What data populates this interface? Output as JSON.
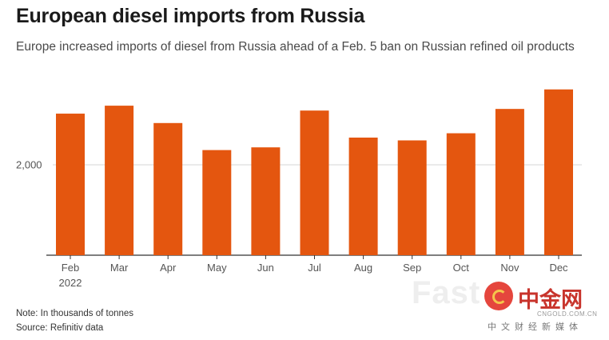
{
  "header": {
    "title": "European diesel imports from Russia",
    "subtitle": "Europe increased imports of diesel from Russia ahead of a Feb. 5 ban on Russian refined oil products"
  },
  "chart_data": {
    "type": "bar",
    "categories": [
      "Feb",
      "Mar",
      "Apr",
      "May",
      "Jun",
      "Jul",
      "Aug",
      "Sep",
      "Oct",
      "Nov",
      "Dec"
    ],
    "category_sublabels": [
      "2022",
      "",
      "",
      "",
      "",
      "",
      "",
      "",
      "",
      "",
      ""
    ],
    "values": [
      2566,
      2654,
      2462,
      2163,
      2193,
      2600,
      2301,
      2270,
      2349,
      2618,
      2834
    ],
    "ylim": [
      1000,
      3000
    ],
    "yticks": [
      2000
    ],
    "ytick_labels": [
      "2,000"
    ],
    "bar_color": "#e4560f",
    "grid": true
  },
  "footer": {
    "note": "Note: In thousands of tonnes",
    "source": "Source: Refinitiv data"
  },
  "watermark": {
    "text": "Fast",
    "logo_text": "中金网",
    "logo_url": "CNGOLD.COM.CN",
    "logo_sub": "中文财经新媒体"
  }
}
